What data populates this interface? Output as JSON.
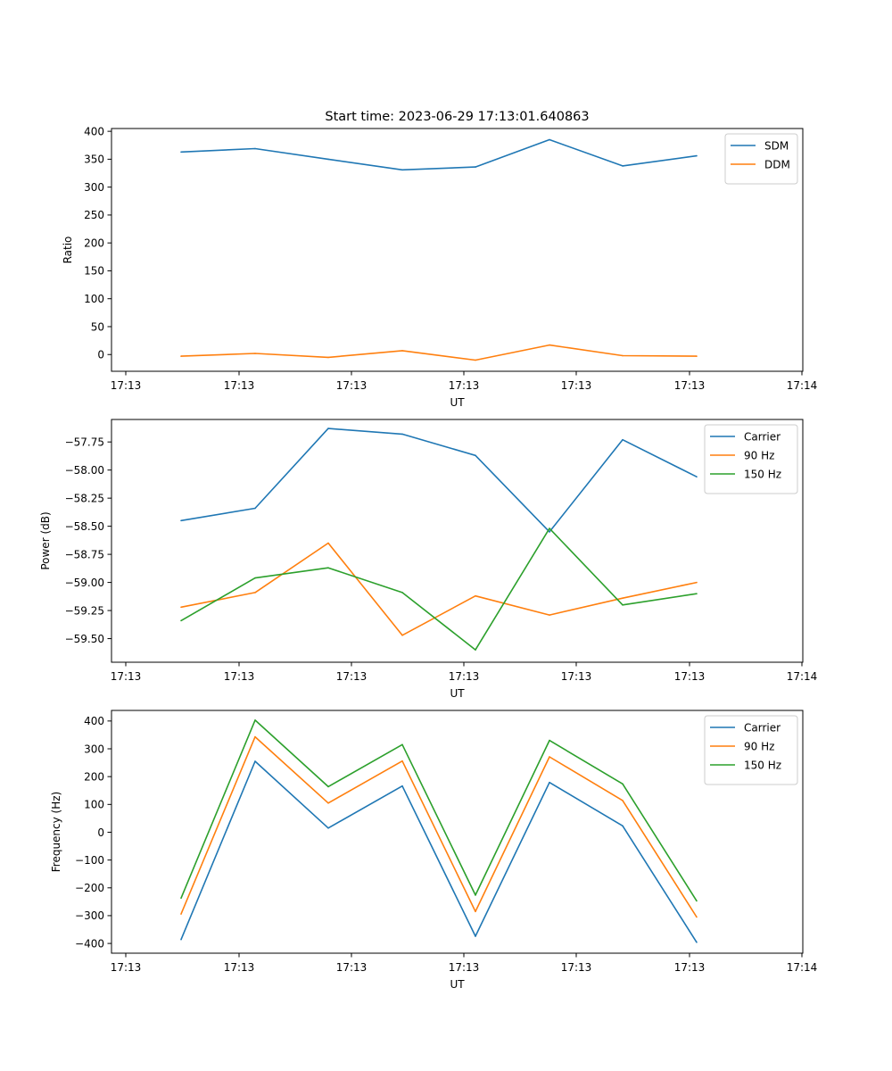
{
  "chart_data": [
    {
      "type": "line",
      "title": "Start time: 2023-06-29 17:13:01.640863",
      "xlabel": "UT",
      "ylabel": "Ratio",
      "xticks": [
        "17:13",
        "17:13",
        "17:13",
        "17:13",
        "17:13",
        "17:13",
        "17:14"
      ],
      "x": [
        "17:13:01.6",
        "17:13:02.6",
        "17:13:03.6",
        "17:13:04.6",
        "17:13:05.6",
        "17:13:06.6",
        "17:13:07.6",
        "17:13:08.6"
      ],
      "ylim": [
        -30,
        405
      ],
      "yticks": [
        0,
        50,
        100,
        150,
        200,
        250,
        300,
        350,
        400
      ],
      "legend": "top-right",
      "grid": false,
      "series": [
        {
          "name": "SDM",
          "color": "#1f77b4",
          "values": [
            363,
            369,
            350,
            331,
            336,
            385,
            338,
            356
          ]
        },
        {
          "name": "DDM",
          "color": "#ff7f0e",
          "values": [
            -3,
            2,
            -5,
            7,
            -10,
            17,
            -2,
            -3
          ]
        }
      ]
    },
    {
      "type": "line",
      "title": "",
      "xlabel": "UT",
      "ylabel": "Power (dB)",
      "xticks": [
        "17:13",
        "17:13",
        "17:13",
        "17:13",
        "17:13",
        "17:13",
        "17:14"
      ],
      "x": [
        "17:13:01.6",
        "17:13:02.6",
        "17:13:03.6",
        "17:13:04.6",
        "17:13:05.6",
        "17:13:06.6",
        "17:13:07.6",
        "17:13:08.6"
      ],
      "ylim": [
        -59.71,
        -57.55
      ],
      "yticks": [
        -59.5,
        -59.25,
        -59.0,
        -58.75,
        -58.5,
        -58.25,
        -58.0,
        -57.75
      ],
      "yticklabels": [
        "−59.50",
        "−59.25",
        "−59.00",
        "−58.75",
        "−58.50",
        "−58.25",
        "−58.00",
        "−57.75"
      ],
      "legend": "top-right",
      "grid": false,
      "series": [
        {
          "name": "Carrier",
          "color": "#1f77b4",
          "values": [
            -58.45,
            -58.34,
            -57.63,
            -57.68,
            -57.87,
            -58.55,
            -57.73,
            -58.06
          ]
        },
        {
          "name": "90 Hz",
          "color": "#ff7f0e",
          "values": [
            -59.22,
            -59.09,
            -58.65,
            -59.47,
            -59.12,
            -59.29,
            -59.14,
            -59.0
          ]
        },
        {
          "name": "150 Hz",
          "color": "#2ca02c",
          "values": [
            -59.34,
            -58.96,
            -58.87,
            -59.09,
            -59.6,
            -58.52,
            -59.2,
            -59.1
          ]
        }
      ]
    },
    {
      "type": "line",
      "title": "",
      "xlabel": "UT",
      "ylabel": "Frequency (Hz)",
      "xticks": [
        "17:13",
        "17:13",
        "17:13",
        "17:13",
        "17:13",
        "17:13",
        "17:14"
      ],
      "x": [
        "17:13:01.6",
        "17:13:02.6",
        "17:13:03.6",
        "17:13:04.6",
        "17:13:05.6",
        "17:13:06.6",
        "17:13:07.6",
        "17:13:08.6"
      ],
      "ylim": [
        -435,
        438
      ],
      "yticks": [
        -400,
        -300,
        -200,
        -100,
        0,
        100,
        200,
        300,
        400
      ],
      "yticklabels": [
        "−400",
        "−300",
        "−200",
        "−100",
        "0",
        "100",
        "200",
        "300",
        "400"
      ],
      "legend": "top-right",
      "grid": false,
      "series": [
        {
          "name": "Carrier",
          "color": "#1f77b4",
          "values": [
            -386,
            255,
            15,
            166,
            -374,
            179,
            23,
            -396
          ]
        },
        {
          "name": "90 Hz",
          "color": "#ff7f0e",
          "values": [
            -294,
            343,
            105,
            256,
            -285,
            271,
            114,
            -305
          ]
        },
        {
          "name": "150 Hz",
          "color": "#2ca02c",
          "values": [
            -237,
            403,
            164,
            315,
            -226,
            330,
            174,
            -247
          ]
        }
      ]
    }
  ]
}
